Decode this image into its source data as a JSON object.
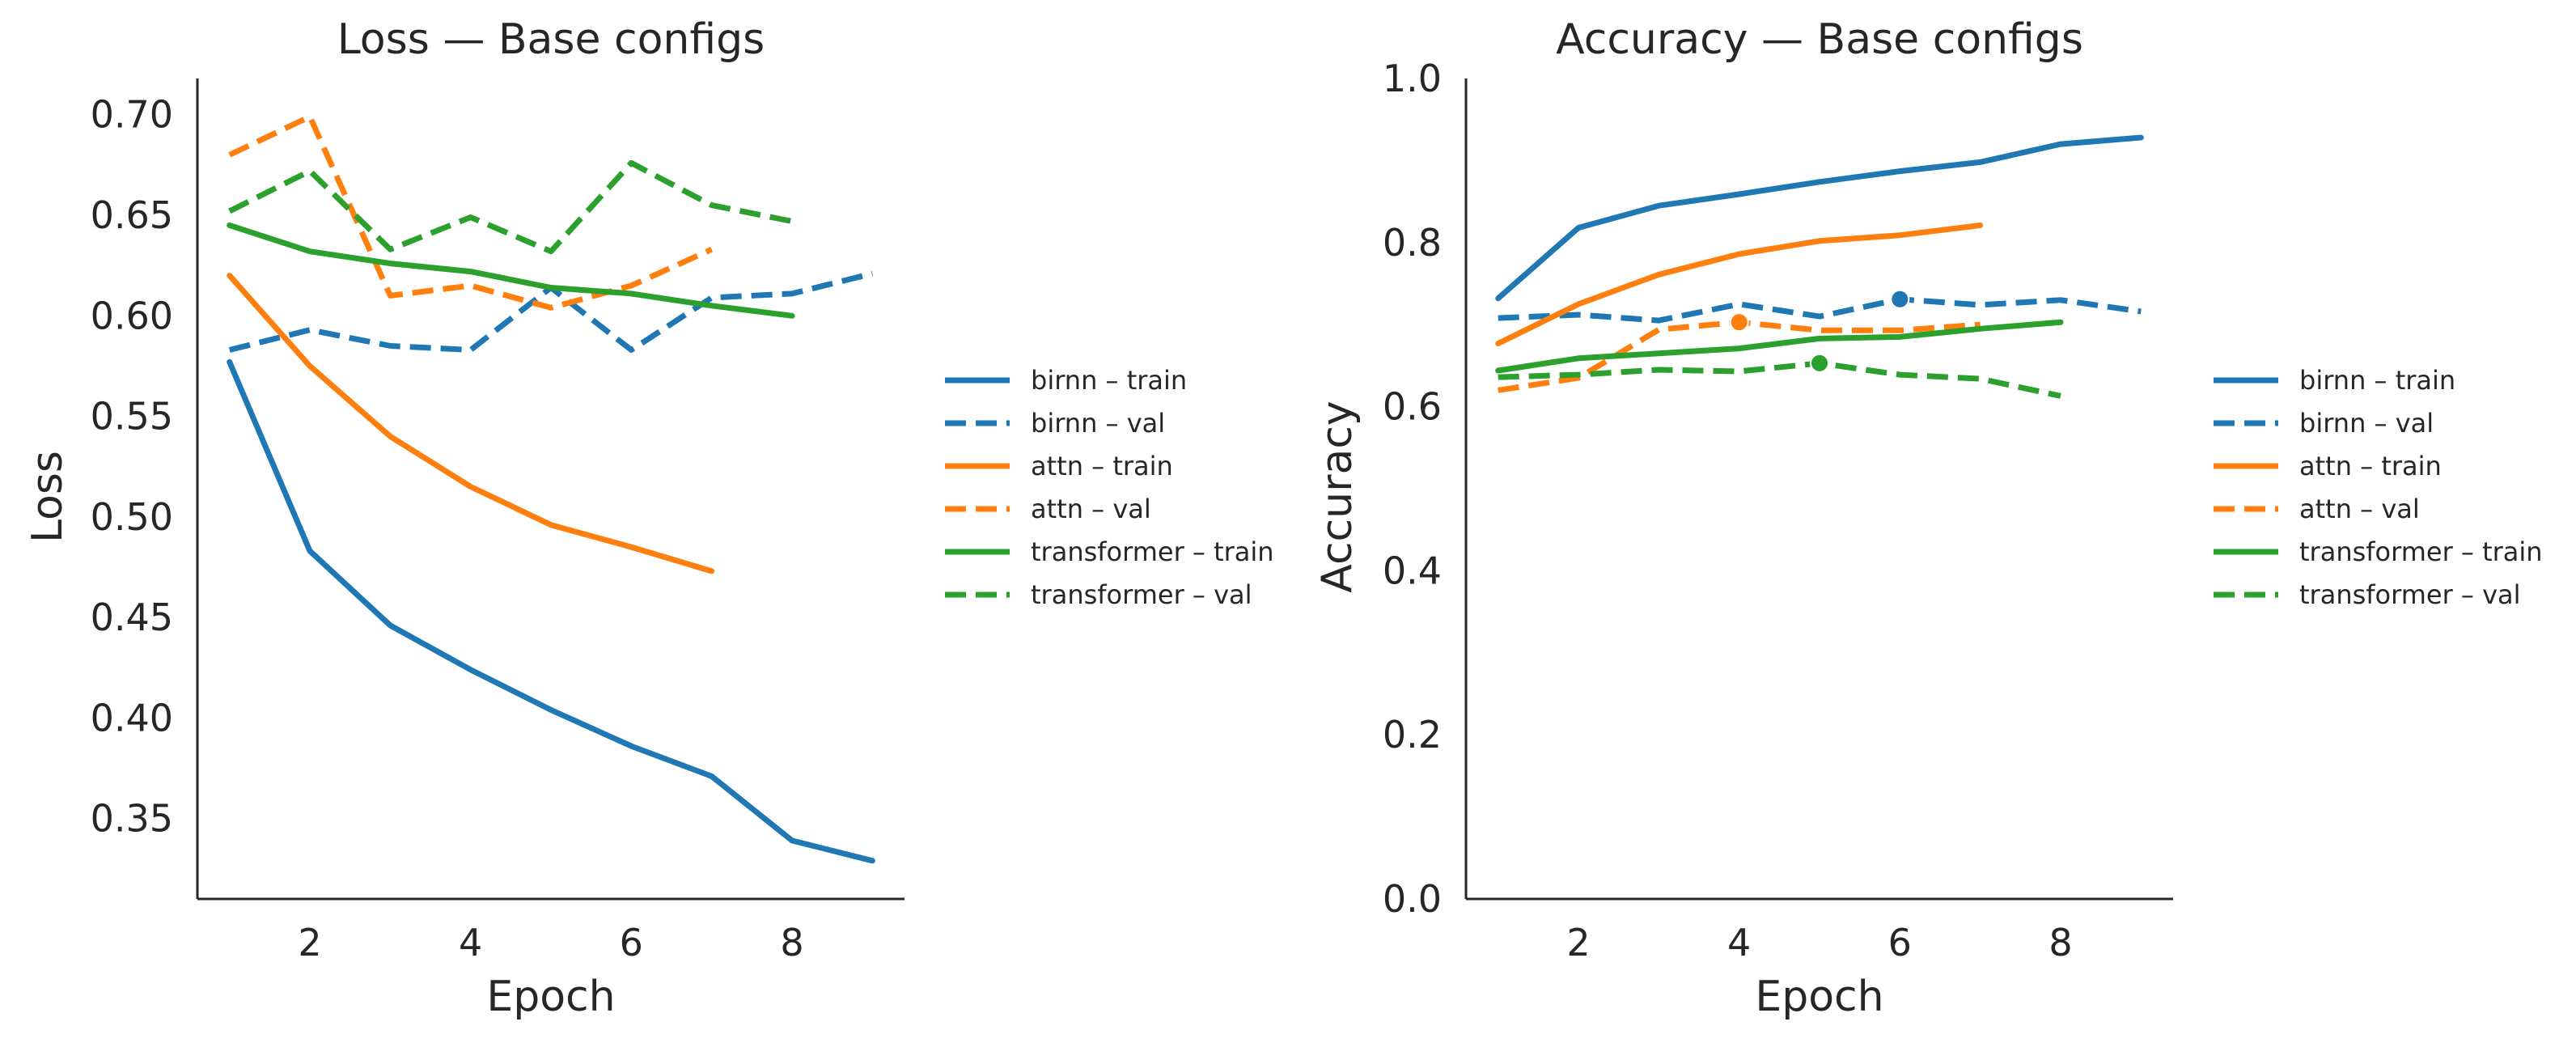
{
  "chart_data": [
    {
      "type": "line",
      "title": "Loss — Base configs",
      "xlabel": "Epoch",
      "ylabel": "Loss",
      "xlim": [
        0.6,
        9.4
      ],
      "ylim": [
        0.31,
        0.718
      ],
      "xticks": [
        2,
        4,
        6,
        8
      ],
      "yticks": [
        0.35,
        0.4,
        0.45,
        0.5,
        0.55,
        0.6,
        0.65,
        0.7
      ],
      "ytick_labels": [
        "0.35",
        "0.40",
        "0.45",
        "0.50",
        "0.55",
        "0.60",
        "0.65",
        "0.70"
      ],
      "grid": false,
      "legend_position": "right-outside",
      "series": [
        {
          "name": "birnn – train",
          "color": "#1f77b4",
          "style": "solid",
          "x": [
            1,
            2,
            3,
            4,
            5,
            6,
            7,
            8,
            9
          ],
          "y": [
            0.577,
            0.483,
            0.446,
            0.424,
            0.404,
            0.386,
            0.371,
            0.339,
            0.329
          ]
        },
        {
          "name": "birnn – val",
          "color": "#1f77b4",
          "style": "dashed",
          "x": [
            1,
            2,
            3,
            4,
            5,
            6,
            7,
            8,
            9
          ],
          "y": [
            0.583,
            0.593,
            0.585,
            0.583,
            0.614,
            0.583,
            0.609,
            0.611,
            0.621
          ]
        },
        {
          "name": "attn – train",
          "color": "#ff7f0e",
          "style": "solid",
          "x": [
            1,
            2,
            3,
            4,
            5,
            6,
            7
          ],
          "y": [
            0.62,
            0.575,
            0.54,
            0.515,
            0.496,
            0.485,
            0.473
          ]
        },
        {
          "name": "attn – val",
          "color": "#ff7f0e",
          "style": "dashed",
          "x": [
            1,
            2,
            3,
            4,
            5,
            6,
            7
          ],
          "y": [
            0.68,
            0.699,
            0.61,
            0.615,
            0.604,
            0.615,
            0.633
          ]
        },
        {
          "name": "transformer – train",
          "color": "#2ca02c",
          "style": "solid",
          "x": [
            1,
            2,
            3,
            4,
            5,
            6,
            7,
            8
          ],
          "y": [
            0.645,
            0.632,
            0.626,
            0.622,
            0.614,
            0.611,
            0.605,
            0.6
          ]
        },
        {
          "name": "transformer – val",
          "color": "#2ca02c",
          "style": "dashed",
          "x": [
            1,
            2,
            3,
            4,
            5,
            6,
            7,
            8
          ],
          "y": [
            0.652,
            0.672,
            0.633,
            0.649,
            0.632,
            0.676,
            0.655,
            0.647
          ]
        }
      ]
    },
    {
      "type": "line",
      "title": "Accuracy — Base configs",
      "xlabel": "Epoch",
      "ylabel": "Accuracy",
      "xlim": [
        0.6,
        9.4
      ],
      "ylim": [
        0.0,
        1.0
      ],
      "xticks": [
        2,
        4,
        6,
        8
      ],
      "yticks": [
        0.0,
        0.2,
        0.4,
        0.6,
        0.8,
        1.0
      ],
      "ytick_labels": [
        "0.0",
        "0.2",
        "0.4",
        "0.6",
        "0.8",
        "1.0"
      ],
      "grid": false,
      "legend_position": "right-outside",
      "series": [
        {
          "name": "birnn – train",
          "color": "#1f77b4",
          "style": "solid",
          "x": [
            1,
            2,
            3,
            4,
            5,
            6,
            7,
            8,
            9
          ],
          "y": [
            0.732,
            0.818,
            0.845,
            0.859,
            0.874,
            0.887,
            0.898,
            0.92,
            0.928
          ]
        },
        {
          "name": "birnn – val",
          "color": "#1f77b4",
          "style": "dashed",
          "x": [
            1,
            2,
            3,
            4,
            5,
            6,
            7,
            8,
            9
          ],
          "y": [
            0.708,
            0.712,
            0.705,
            0.725,
            0.71,
            0.731,
            0.724,
            0.73,
            0.716
          ],
          "best_epoch": 6
        },
        {
          "name": "attn – train",
          "color": "#ff7f0e",
          "style": "solid",
          "x": [
            1,
            2,
            3,
            4,
            5,
            6,
            7
          ],
          "y": [
            0.677,
            0.725,
            0.761,
            0.786,
            0.802,
            0.809,
            0.821
          ]
        },
        {
          "name": "attn – val",
          "color": "#ff7f0e",
          "style": "dashed",
          "x": [
            1,
            2,
            3,
            4,
            5,
            6,
            7
          ],
          "y": [
            0.62,
            0.635,
            0.694,
            0.703,
            0.693,
            0.693,
            0.7
          ],
          "best_epoch": 4
        },
        {
          "name": "transformer – train",
          "color": "#2ca02c",
          "style": "solid",
          "x": [
            1,
            2,
            3,
            4,
            5,
            6,
            7,
            8
          ],
          "y": [
            0.644,
            0.659,
            0.665,
            0.671,
            0.683,
            0.685,
            0.695,
            0.703
          ]
        },
        {
          "name": "transformer – val",
          "color": "#2ca02c",
          "style": "dashed",
          "x": [
            1,
            2,
            3,
            4,
            5,
            6,
            7,
            8
          ],
          "y": [
            0.636,
            0.639,
            0.645,
            0.643,
            0.653,
            0.639,
            0.634,
            0.613
          ],
          "best_epoch": 5
        }
      ]
    }
  ]
}
